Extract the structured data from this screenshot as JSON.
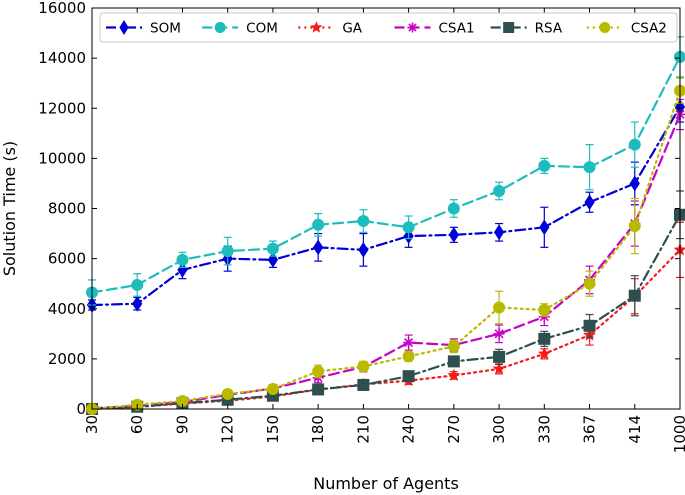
{
  "chart_data": {
    "type": "line",
    "title": "",
    "xlabel": "Number of Agents",
    "ylabel": "Solution Time (s)",
    "categories": [
      "30",
      "60",
      "90",
      "120",
      "150",
      "180",
      "210",
      "240",
      "270",
      "300",
      "330",
      "367",
      "414",
      "1000"
    ],
    "ylim": [
      0,
      16000
    ],
    "yticks": [
      0,
      2000,
      4000,
      6000,
      8000,
      10000,
      12000,
      14000,
      16000
    ],
    "legend_position": "top",
    "series": [
      {
        "name": "SOM",
        "color": "#0000d8",
        "dash": "dashdot",
        "marker": "diamond",
        "values": [
          4150,
          4200,
          5550,
          6000,
          5950,
          6450,
          6350,
          6900,
          6950,
          7050,
          7250,
          8250,
          9000,
          12050
        ],
        "errors": [
          200,
          250,
          350,
          500,
          300,
          550,
          650,
          450,
          300,
          350,
          800,
          400,
          850,
          600
        ]
      },
      {
        "name": "COM",
        "color": "#1ebdbd",
        "dash": "dashed",
        "marker": "circle",
        "values": [
          4650,
          4950,
          5950,
          6300,
          6400,
          7350,
          7500,
          7250,
          8000,
          8700,
          9700,
          9650,
          10550,
          14050
        ],
        "errors": [
          500,
          450,
          300,
          550,
          300,
          450,
          450,
          450,
          350,
          350,
          300,
          900,
          900,
          800
        ]
      },
      {
        "name": "GA",
        "color": "#f51b1b",
        "dash": "dotted",
        "marker": "star",
        "values": [
          0,
          80,
          220,
          330,
          500,
          780,
          980,
          1130,
          1340,
          1600,
          2200,
          2950,
          4500,
          6350
        ],
        "errors": [
          60,
          80,
          80,
          100,
          100,
          120,
          150,
          150,
          150,
          200,
          200,
          400,
          700,
          1100
        ]
      },
      {
        "name": "CSA1",
        "color": "#c800c8",
        "dash": "dashed",
        "marker": "asterisk",
        "values": [
          30,
          120,
          280,
          560,
          820,
          1250,
          1680,
          2650,
          2550,
          3000,
          3680,
          5150,
          7400,
          11750
        ],
        "errors": [
          60,
          80,
          100,
          120,
          150,
          200,
          200,
          300,
          250,
          350,
          350,
          550,
          900,
          600
        ]
      },
      {
        "name": "RSA",
        "color": "#2f4f4f",
        "dash": "dashdot",
        "marker": "square",
        "values": [
          0,
          90,
          230,
          370,
          530,
          780,
          960,
          1310,
          1900,
          2080,
          2800,
          3320,
          4520,
          7750
        ],
        "errors": [
          60,
          80,
          80,
          100,
          100,
          120,
          150,
          150,
          200,
          300,
          300,
          450,
          800,
          950
        ]
      },
      {
        "name": "CSA2",
        "color": "#b9b900",
        "dash": "dotted",
        "marker": "circle",
        "values": [
          0,
          170,
          320,
          600,
          800,
          1500,
          1700,
          2100,
          2500,
          4050,
          3950,
          5000,
          7300,
          12700
        ],
        "errors": [
          60,
          100,
          100,
          150,
          150,
          250,
          200,
          200,
          250,
          650,
          250,
          500,
          1100,
          500
        ]
      }
    ]
  }
}
